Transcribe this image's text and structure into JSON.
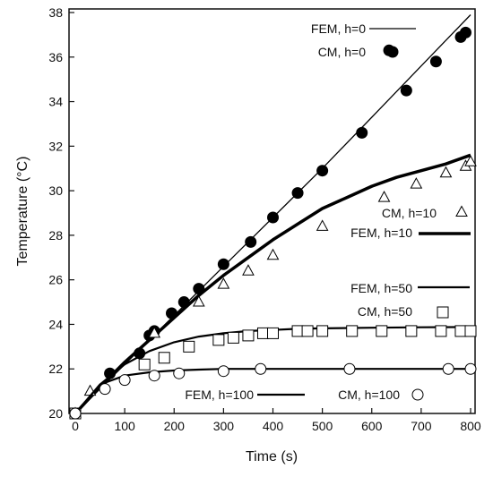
{
  "chart_data": {
    "type": "line",
    "title": "",
    "xlabel": "Time (s)",
    "ylabel": "Temperature (°C)",
    "xlim": [
      0,
      800
    ],
    "ylim": [
      20,
      38
    ],
    "xticks": [
      0,
      100,
      200,
      300,
      400,
      500,
      600,
      700,
      800
    ],
    "yticks": [
      20,
      22,
      24,
      26,
      28,
      30,
      32,
      34,
      36,
      38
    ],
    "grid": false,
    "series": [
      {
        "name": "FEM, h=0",
        "kind": "line",
        "line_weight": "thin",
        "color": "#000000",
        "x": [
          0,
          100,
          200,
          300,
          400,
          500,
          600,
          700,
          800
        ],
        "y": [
          20.0,
          22.2,
          24.4,
          26.6,
          28.8,
          31.0,
          33.3,
          35.6,
          37.9
        ]
      },
      {
        "name": "CM, h=0",
        "kind": "markers",
        "marker": "filled-circle",
        "color": "#000000",
        "x": [
          0,
          70,
          130,
          150,
          160,
          195,
          220,
          250,
          300,
          355,
          400,
          450,
          500,
          580,
          635,
          670,
          730,
          780,
          790
        ],
        "y": [
          20.0,
          21.8,
          22.7,
          23.5,
          23.7,
          24.5,
          25.0,
          25.6,
          26.7,
          27.7,
          28.8,
          29.9,
          30.9,
          32.6,
          36.3,
          34.5,
          35.8,
          36.9,
          37.1
        ]
      },
      {
        "name": "FEM, h=10",
        "kind": "line",
        "line_weight": "thick",
        "color": "#000000",
        "x": [
          0,
          50,
          100,
          150,
          200,
          250,
          300,
          350,
          400,
          450,
          500,
          550,
          600,
          650,
          700,
          750,
          800
        ],
        "y": [
          20.0,
          21.2,
          22.3,
          23.3,
          24.3,
          25.3,
          26.2,
          27.0,
          27.8,
          28.5,
          29.2,
          29.7,
          30.2,
          30.6,
          30.9,
          31.2,
          31.6
        ]
      },
      {
        "name": "CM, h=10",
        "kind": "markers",
        "marker": "open-triangle",
        "color": "#000000",
        "x": [
          0,
          30,
          160,
          250,
          300,
          350,
          400,
          500,
          625,
          690,
          750,
          790,
          800
        ],
        "y": [
          20.0,
          21.0,
          23.6,
          25.0,
          25.8,
          26.4,
          27.1,
          28.4,
          29.7,
          30.3,
          30.8,
          31.1,
          31.3
        ]
      },
      {
        "name": "FEM, h=50",
        "kind": "line",
        "line_weight": "medium",
        "color": "#000000",
        "x": [
          0,
          50,
          100,
          150,
          200,
          250,
          300,
          350,
          400,
          450,
          500,
          600,
          700,
          800
        ],
        "y": [
          20.0,
          21.3,
          22.2,
          22.8,
          23.2,
          23.45,
          23.6,
          23.7,
          23.75,
          23.8,
          23.82,
          23.85,
          23.87,
          23.88
        ]
      },
      {
        "name": "CM, h=50",
        "kind": "markers",
        "marker": "open-square",
        "color": "#000000",
        "x": [
          0,
          140,
          180,
          230,
          290,
          320,
          350,
          380,
          400,
          450,
          470,
          500,
          560,
          620,
          680,
          740,
          780,
          800
        ],
        "y": [
          20.0,
          22.2,
          22.5,
          23.0,
          23.3,
          23.4,
          23.5,
          23.6,
          23.6,
          23.7,
          23.7,
          23.7,
          23.7,
          23.7,
          23.7,
          23.7,
          23.7,
          23.7
        ]
      },
      {
        "name": "FEM, h=100",
        "kind": "line",
        "line_weight": "medium",
        "color": "#000000",
        "x": [
          0,
          50,
          100,
          150,
          200,
          250,
          300,
          400,
          500,
          600,
          700,
          800
        ],
        "y": [
          20.0,
          21.3,
          21.7,
          21.85,
          21.93,
          21.97,
          22.0,
          22.0,
          22.0,
          22.0,
          22.0,
          22.0
        ]
      },
      {
        "name": "CM, h=100",
        "kind": "markers",
        "marker": "open-circle",
        "color": "#000000",
        "x": [
          0,
          60,
          100,
          160,
          210,
          300,
          375,
          555,
          755,
          800
        ],
        "y": [
          20.0,
          21.1,
          21.5,
          21.7,
          21.8,
          21.9,
          22.0,
          22.0,
          22.0,
          22.0
        ]
      }
    ],
    "legend_entries": [
      {
        "label": "FEM, h=0",
        "series": 0
      },
      {
        "label": "CM, h=0",
        "series": 1
      },
      {
        "label": "CM, h=10",
        "series": 3
      },
      {
        "label": "FEM, h=10",
        "series": 2
      },
      {
        "label": "FEM, h=50",
        "series": 4
      },
      {
        "label": "CM, h=50",
        "series": 5
      },
      {
        "label": "FEM, h=100",
        "series": 6
      },
      {
        "label": "CM, h=100",
        "series": 7
      }
    ]
  }
}
